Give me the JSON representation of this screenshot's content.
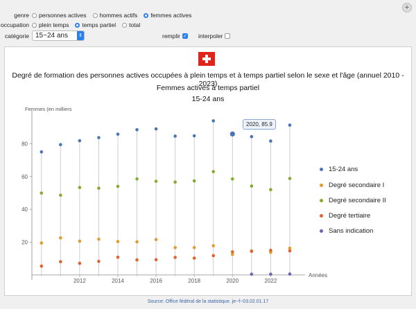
{
  "controls": {
    "genre_label": "genre",
    "genre_options": [
      "personnes actives",
      "hommes actifs",
      "femmes actives"
    ],
    "genre_selected": "femmes actives",
    "occupation_label": "occupation",
    "occupation_options": [
      "plein temps",
      "temps partiel",
      "total"
    ],
    "occupation_selected": "temps partiel",
    "categorie_label": "catégorie",
    "categorie_value": "15−24 ans",
    "remplir_label": "remplir",
    "remplir_checked": true,
    "interpoler_label": "interpoler",
    "interpoler_checked": false
  },
  "titles": {
    "main": "Degré de formation des personnes actives occupées à plein temps et à temps partiel selon le sexe et l'âge (annuel 2010 - 2023)",
    "sub1": "Femmes actives à temps partiel",
    "sub2": "15-24 ans"
  },
  "tooltip": "2020, 85.9",
  "source": "Source: Office fédéral de la statistique. je−f−03.02.01.17",
  "colors": {
    "accent": "#2a7ff0",
    "s1": "#4a74b7",
    "s2": "#e39c2c",
    "s3": "#82ab2f",
    "s4": "#e0632e",
    "s5": "#6a66b0"
  },
  "chart_data": {
    "type": "scatter",
    "ylabel": "Femmes (en milliers",
    "xlabel": "Années",
    "ylim": [
      -3,
      100
    ],
    "xlim": [
      2009.5,
      2023.8
    ],
    "xticks": [
      2012,
      2014,
      2016,
      2018,
      2020,
      2022
    ],
    "yticks": [
      20,
      40,
      60,
      80
    ],
    "grid": false,
    "legend_position": "right",
    "x": [
      2010,
      2011,
      2012,
      2013,
      2014,
      2015,
      2016,
      2017,
      2018,
      2019,
      2020,
      2021,
      2022,
      2023
    ],
    "series": [
      {
        "name": "15-24 ans",
        "values": [
          75.0,
          79.4,
          81.8,
          83.7,
          85.8,
          88.5,
          89.0,
          84.6,
          84.8,
          93.9,
          85.9,
          84.3,
          81.6,
          91.3
        ]
      },
      {
        "name": "Degré secondaire I",
        "values": [
          19.5,
          22.6,
          20.6,
          21.8,
          20.4,
          20.2,
          21.6,
          16.7,
          16.7,
          17.8,
          12.5,
          14.7,
          13.8,
          16.3
        ]
      },
      {
        "name": "Degré secondaire II",
        "values": [
          49.9,
          48.6,
          53.3,
          52.9,
          54.0,
          58.5,
          57.1,
          56.6,
          57.3,
          63.0,
          58.5,
          54.2,
          52.0,
          58.8
        ]
      },
      {
        "name": "Degré tertiaire",
        "values": [
          5.4,
          8.1,
          7.1,
          8.3,
          10.8,
          9.2,
          9.3,
          10.7,
          10.3,
          11.8,
          14.1,
          14.4,
          15.0,
          14.7
        ]
      },
      {
        "name": "Sans indication",
        "values": [
          null,
          null,
          null,
          null,
          null,
          null,
          null,
          null,
          null,
          null,
          null,
          0.5,
          0.5,
          0.6
        ]
      }
    ],
    "highlight": {
      "x": 2020,
      "y": 85.9
    }
  }
}
